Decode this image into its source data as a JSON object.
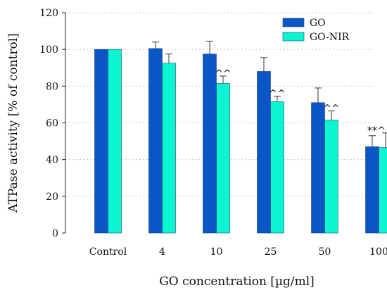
{
  "chart_data": {
    "type": "bar",
    "title": "",
    "xlabel": "GO concentration [µg/ml]",
    "ylabel": "ATPase activity [% of control]",
    "ylim": [
      0,
      120
    ],
    "yticks": [
      "0",
      "20",
      "40",
      "60",
      "80",
      "100",
      "120"
    ],
    "grid": "horizontal dotted",
    "legend_position": "top-right",
    "categories": [
      "Control",
      "4",
      "10",
      "25",
      "50",
      "100"
    ],
    "series": [
      {
        "name": "GO",
        "color": "#0a56c4",
        "values": [
          100,
          100.5,
          97.5,
          88,
          71,
          47
        ],
        "errors": [
          0,
          3.5,
          7,
          7.5,
          8,
          6
        ]
      },
      {
        "name": "GO-NIR",
        "color": "#0af5d0",
        "values": [
          100,
          92.5,
          81.5,
          71.5,
          61.5,
          46.5
        ],
        "errors": [
          0,
          5,
          4,
          3,
          5,
          8
        ]
      }
    ],
    "annotations": [
      {
        "category": "10",
        "series": "GO-NIR",
        "text": "^^"
      },
      {
        "category": "25",
        "series": "GO-NIR",
        "text": "^^"
      },
      {
        "category": "50",
        "series": "GO-NIR",
        "text": "^^"
      },
      {
        "category": "100",
        "series": "GO",
        "text": "**"
      },
      {
        "category": "100",
        "series": "GO-NIR",
        "text": "^^"
      }
    ]
  }
}
